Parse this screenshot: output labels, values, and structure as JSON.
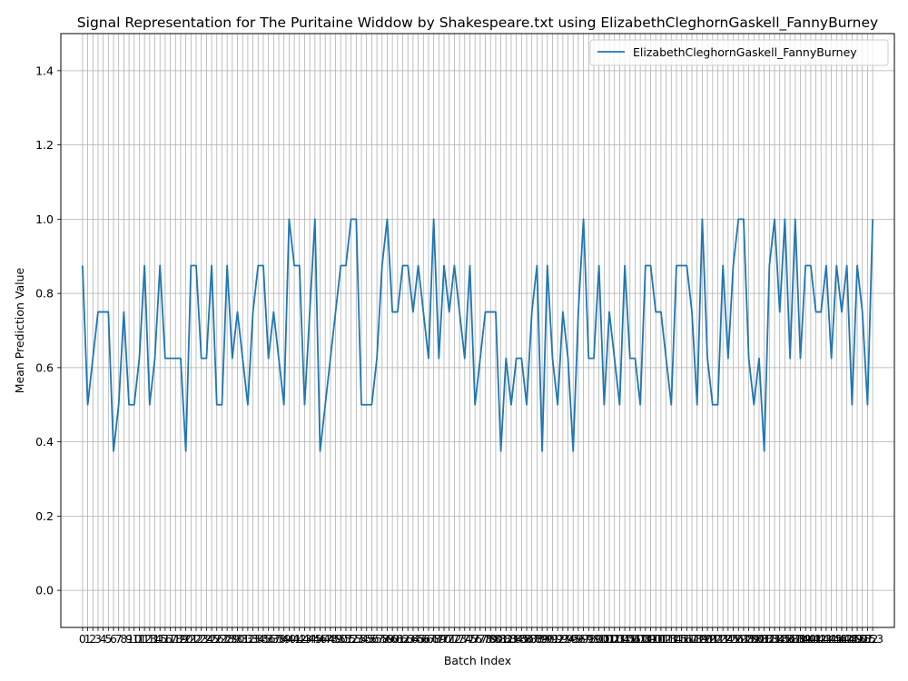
{
  "chart_data": {
    "type": "line",
    "title": "Signal Representation for The Puritaine Widdow by Shakespeare.txt using ElizabethCleghornGaskell_FannyBurney",
    "xlabel": "Batch Index",
    "ylabel": "Mean Prediction Value",
    "xlim": [
      -4.2,
      157.2
    ],
    "ylim": [
      -0.1,
      1.5
    ],
    "yticks": [
      0.0,
      0.2,
      0.4,
      0.6,
      0.8,
      1.0,
      1.2,
      1.4
    ],
    "grid": true,
    "legend_position": "top-right",
    "series": [
      {
        "name": "ElizabethCleghornGaskell_FannyBurney",
        "color": "#1f77b4",
        "x": [
          0,
          1,
          2,
          3,
          4,
          5,
          6,
          7,
          8,
          9,
          10,
          11,
          12,
          13,
          14,
          15,
          16,
          17,
          18,
          19,
          20,
          21,
          22,
          23,
          24,
          25,
          26,
          27,
          28,
          29,
          30,
          31,
          32,
          33,
          34,
          35,
          36,
          37,
          38,
          39,
          40,
          41,
          42,
          43,
          44,
          45,
          46,
          47,
          48,
          49,
          50,
          51,
          52,
          53,
          54,
          55,
          56,
          57,
          58,
          59,
          60,
          61,
          62,
          63,
          64,
          65,
          66,
          67,
          68,
          69,
          70,
          71,
          72,
          73,
          74,
          75,
          76,
          77,
          78,
          79,
          80,
          81,
          82,
          83,
          84,
          85,
          86,
          87,
          88,
          89,
          90,
          91,
          92,
          93,
          94,
          95,
          96,
          97,
          98,
          99,
          100,
          101,
          102,
          103,
          104,
          105,
          106,
          107,
          108,
          109,
          110,
          111,
          112,
          113,
          114,
          115,
          116,
          117,
          118,
          119,
          120,
          121,
          122,
          123,
          124,
          125,
          126,
          127,
          128,
          129,
          130,
          131,
          132,
          133,
          134,
          135,
          136,
          137,
          138,
          139,
          140,
          141,
          142,
          143,
          144,
          145,
          146,
          147,
          148,
          149,
          150,
          151,
          152,
          153
        ],
        "values": [
          0.875,
          0.5,
          0.625,
          0.75,
          0.75,
          0.75,
          0.375,
          0.5,
          0.75,
          0.5,
          0.5,
          0.625,
          0.875,
          0.5,
          0.625,
          0.875,
          0.625,
          0.625,
          0.625,
          0.625,
          0.375,
          0.875,
          0.875,
          0.625,
          0.625,
          0.875,
          0.5,
          0.5,
          0.875,
          0.625,
          0.75,
          0.625,
          0.5,
          0.75,
          0.875,
          0.875,
          0.625,
          0.75,
          0.625,
          0.5,
          1.0,
          0.875,
          0.875,
          0.5,
          0.75,
          1.0,
          0.375,
          0.5,
          0.625,
          0.75,
          0.875,
          0.875,
          1.0,
          1.0,
          0.5,
          0.5,
          0.5,
          0.625,
          0.875,
          1.0,
          0.75,
          0.75,
          0.875,
          0.875,
          0.75,
          0.875,
          0.75,
          0.625,
          1.0,
          0.625,
          0.875,
          0.75,
          0.875,
          0.75,
          0.625,
          0.875,
          0.5,
          0.625,
          0.75,
          0.75,
          0.75,
          0.375,
          0.625,
          0.5,
          0.625,
          0.625,
          0.5,
          0.75,
          0.875,
          0.375,
          0.875,
          0.625,
          0.5,
          0.75,
          0.625,
          0.375,
          0.75,
          1.0,
          0.625,
          0.625,
          0.875,
          0.5,
          0.75,
          0.625,
          0.5,
          0.875,
          0.625,
          0.625,
          0.5,
          0.875,
          0.875,
          0.75,
          0.75,
          0.625,
          0.5,
          0.875,
          0.875,
          0.875,
          0.75,
          0.5,
          1.0,
          0.625,
          0.5,
          0.5,
          0.875,
          0.625,
          0.875,
          1.0,
          1.0,
          0.625,
          0.5,
          0.625,
          0.375,
          0.875,
          1.0,
          0.75,
          1.0,
          0.625,
          1.0,
          0.625,
          0.875,
          0.875,
          0.75,
          0.75,
          0.875,
          0.625,
          0.875,
          0.75,
          0.875,
          0.5,
          0.875,
          0.75,
          0.5,
          1.0
        ]
      }
    ]
  }
}
